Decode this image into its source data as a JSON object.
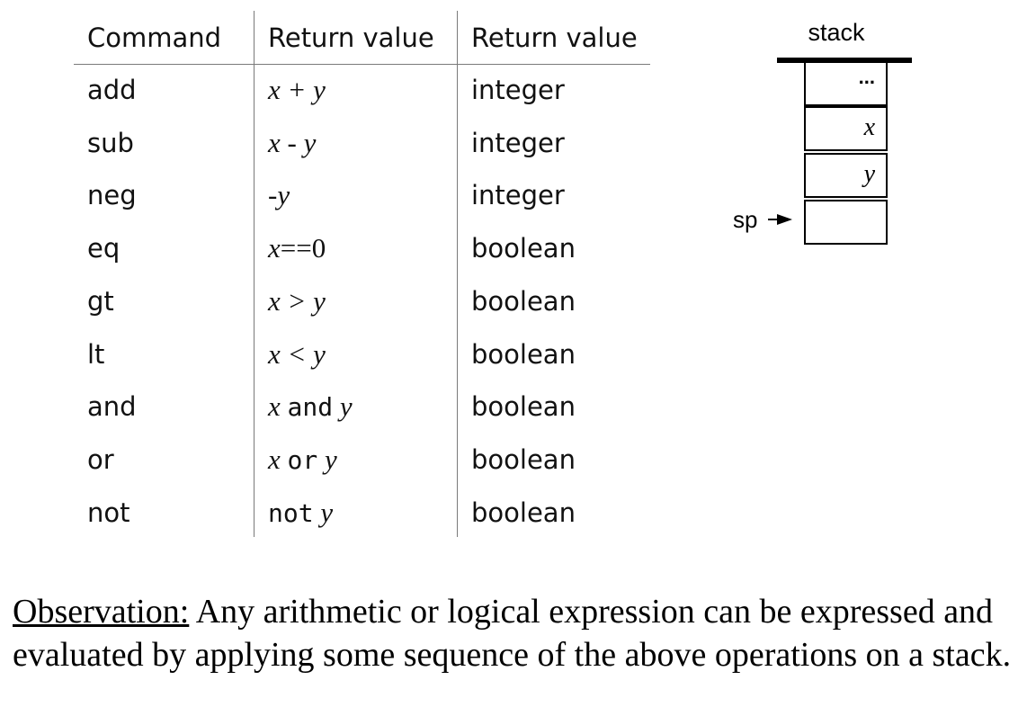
{
  "table": {
    "headers": [
      "Command",
      "Return value",
      "Return value"
    ],
    "rows": [
      {
        "command": "add",
        "expr": [
          {
            "t": "x + y",
            "s": "serif-i"
          }
        ],
        "type": "integer"
      },
      {
        "command": "sub",
        "expr": [
          {
            "t": "x - y",
            "s": "serif-i"
          }
        ],
        "type": "integer"
      },
      {
        "command": "neg",
        "expr": [
          {
            "t": "-y",
            "s": "serif-i"
          }
        ],
        "type": "integer"
      },
      {
        "command": "eq",
        "expr": [
          {
            "t": "x",
            "s": "serif-i"
          },
          {
            "t": "==0",
            "s": "serif"
          }
        ],
        "type": "boolean"
      },
      {
        "command": "gt",
        "expr": [
          {
            "t": "x > y",
            "s": "serif-i"
          }
        ],
        "type": "boolean"
      },
      {
        "command": "lt",
        "expr": [
          {
            "t": "x < y",
            "s": "serif-i"
          }
        ],
        "type": "boolean"
      },
      {
        "command": "and",
        "expr": [
          {
            "t": "x ",
            "s": "serif-i"
          },
          {
            "t": "and",
            "s": "mono"
          },
          {
            "t": " y",
            "s": "serif-i"
          }
        ],
        "type": "boolean"
      },
      {
        "command": "or",
        "expr": [
          {
            "t": "x ",
            "s": "serif-i"
          },
          {
            "t": "or",
            "s": "mono"
          },
          {
            "t": " y",
            "s": "serif-i"
          }
        ],
        "type": "boolean"
      },
      {
        "command": "not",
        "expr": [
          {
            "t": "not",
            "s": "mono"
          },
          {
            "t": " y",
            "s": "serif-i"
          }
        ],
        "type": "boolean"
      }
    ]
  },
  "stack": {
    "label": "stack",
    "cells": [
      "...",
      "x",
      "y",
      ""
    ],
    "pointer_label": "sp"
  },
  "observation": {
    "label": "Observation:",
    "text": " Any arithmetic or logical expression can be expressed and evaluated by applying some sequence of the above operations on a stack."
  }
}
